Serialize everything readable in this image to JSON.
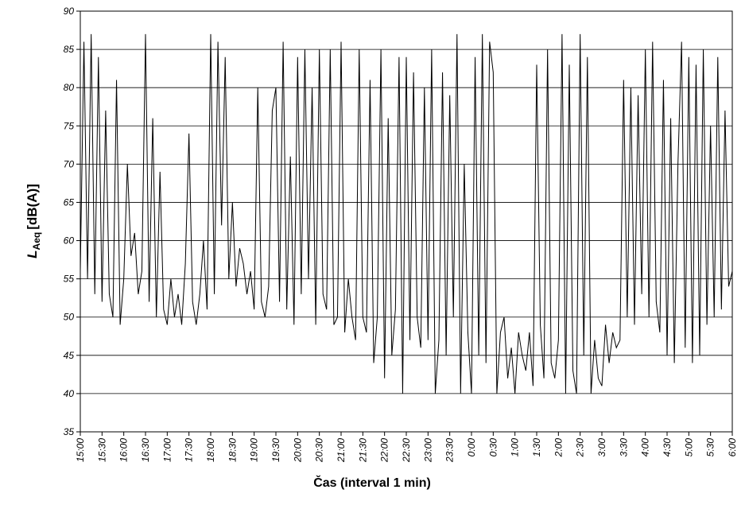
{
  "chart_data": {
    "type": "line",
    "x_label": "Čas (interval 1 min)",
    "y_label": {
      "main": "L",
      "sub": "Aeq",
      "unit": "[dB(A)]"
    },
    "xlim": [
      0,
      900
    ],
    "ylim": [
      35,
      90
    ],
    "yticks": [
      35,
      40,
      45,
      50,
      55,
      60,
      65,
      70,
      75,
      80,
      85,
      90
    ],
    "xticks": [
      {
        "value": 0,
        "label": "15:00"
      },
      {
        "value": 30,
        "label": "15:30"
      },
      {
        "value": 60,
        "label": "16:00"
      },
      {
        "value": 90,
        "label": "16:30"
      },
      {
        "value": 120,
        "label": "17:00"
      },
      {
        "value": 150,
        "label": "17:30"
      },
      {
        "value": 180,
        "label": "18:00"
      },
      {
        "value": 210,
        "label": "18:30"
      },
      {
        "value": 240,
        "label": "19:00"
      },
      {
        "value": 270,
        "label": "19:30"
      },
      {
        "value": 300,
        "label": "20:00"
      },
      {
        "value": 330,
        "label": "20:30"
      },
      {
        "value": 360,
        "label": "21:00"
      },
      {
        "value": 390,
        "label": "21:30"
      },
      {
        "value": 420,
        "label": "22:00"
      },
      {
        "value": 450,
        "label": "22:30"
      },
      {
        "value": 480,
        "label": "23:00"
      },
      {
        "value": 510,
        "label": "23:30"
      },
      {
        "value": 540,
        "label": "0:00"
      },
      {
        "value": 570,
        "label": "0:30"
      },
      {
        "value": 600,
        "label": "1:00"
      },
      {
        "value": 630,
        "label": "1:30"
      },
      {
        "value": 660,
        "label": "2:00"
      },
      {
        "value": 690,
        "label": "2:30"
      },
      {
        "value": 720,
        "label": "3:00"
      },
      {
        "value": 750,
        "label": "3:30"
      },
      {
        "value": 780,
        "label": "4:00"
      },
      {
        "value": 810,
        "label": "4:30"
      },
      {
        "value": 840,
        "label": "5:00"
      },
      {
        "value": 870,
        "label": "5:30"
      },
      {
        "value": 900,
        "label": "6:00"
      }
    ],
    "grid": true,
    "color": "#000000",
    "x": [
      0,
      5,
      10,
      15,
      20,
      25,
      30,
      35,
      40,
      45,
      50,
      55,
      60,
      65,
      70,
      75,
      80,
      85,
      90,
      95,
      100,
      105,
      110,
      115,
      120,
      125,
      130,
      135,
      140,
      145,
      150,
      155,
      160,
      165,
      170,
      175,
      180,
      185,
      190,
      195,
      200,
      205,
      210,
      215,
      220,
      225,
      230,
      235,
      240,
      245,
      250,
      255,
      260,
      265,
      270,
      275,
      280,
      285,
      290,
      295,
      300,
      305,
      310,
      315,
      320,
      325,
      330,
      335,
      340,
      345,
      350,
      355,
      360,
      365,
      370,
      375,
      380,
      385,
      390,
      395,
      400,
      405,
      410,
      415,
      420,
      425,
      430,
      435,
      440,
      445,
      450,
      455,
      460,
      465,
      470,
      475,
      480,
      485,
      490,
      495,
      500,
      505,
      510,
      515,
      520,
      525,
      530,
      535,
      540,
      545,
      550,
      555,
      560,
      565,
      570,
      575,
      580,
      585,
      590,
      595,
      600,
      605,
      610,
      615,
      620,
      625,
      630,
      635,
      640,
      645,
      650,
      655,
      660,
      665,
      670,
      675,
      680,
      685,
      690,
      695,
      700,
      705,
      710,
      715,
      720,
      725,
      730,
      735,
      740,
      745,
      750,
      755,
      760,
      765,
      770,
      775,
      780,
      785,
      790,
      795,
      800,
      805,
      810,
      815,
      820,
      825,
      830,
      835,
      840,
      845,
      850,
      855,
      860,
      865,
      870,
      875,
      880,
      885,
      890,
      895,
      900
    ],
    "values": [
      56,
      86,
      55,
      87,
      53,
      84,
      52,
      77,
      53,
      50,
      81,
      49,
      55,
      70,
      58,
      61,
      53,
      56,
      87,
      52,
      76,
      50,
      69,
      51,
      49,
      55,
      50,
      53,
      49,
      57,
      74,
      52,
      49,
      53,
      60,
      51,
      87,
      53,
      86,
      62,
      84,
      55,
      65,
      54,
      59,
      57,
      53,
      56,
      51,
      80,
      52,
      50,
      54,
      77,
      80,
      52,
      86,
      51,
      71,
      49,
      84,
      53,
      85,
      55,
      80,
      49,
      85,
      53,
      51,
      85,
      49,
      50,
      86,
      48,
      55,
      50,
      47,
      85,
      50,
      48,
      81,
      44,
      50,
      85,
      42,
      76,
      45,
      51,
      84,
      40,
      84,
      47,
      82,
      50,
      46,
      80,
      47,
      85,
      40,
      47,
      82,
      45,
      79,
      50,
      87,
      40,
      70,
      48,
      40,
      84,
      45,
      87,
      44,
      86,
      82,
      40,
      48,
      50,
      42,
      46,
      40,
      48,
      45,
      43,
      48,
      41,
      83,
      49,
      42,
      85,
      44,
      42,
      47,
      87,
      40,
      83,
      43,
      40,
      87,
      45,
      84,
      40,
      47,
      42,
      41,
      49,
      44,
      48,
      46,
      47,
      81,
      50,
      80,
      49,
      79,
      53,
      85,
      50,
      86,
      52,
      48,
      81,
      45,
      76,
      44,
      70,
      86,
      46,
      84,
      44,
      83,
      45,
      85,
      49,
      75,
      50,
      84,
      51,
      77,
      54,
      56
    ]
  }
}
